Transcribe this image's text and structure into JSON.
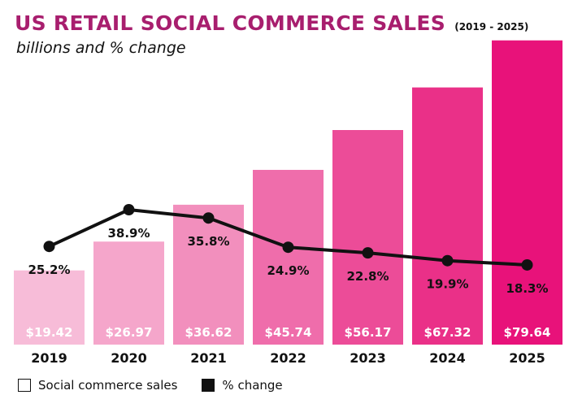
{
  "title": "US RETAIL SOCIAL COMMERCE SALES",
  "title_years": "(2019 - 2025)",
  "subtitle": "billions and % change",
  "legend": {
    "bars_label": "Social commerce sales",
    "line_label": "% change"
  },
  "colors": {
    "title": "#a81e6e",
    "line": "#111111",
    "bars": [
      "#f7bcd8",
      "#f5a6cb",
      "#f28fbd",
      "#ef6dab",
      "#ec4c98",
      "#ea3088",
      "#e8127a"
    ]
  },
  "chart_data": {
    "type": "bar",
    "categories": [
      "2019",
      "2020",
      "2021",
      "2022",
      "2023",
      "2024",
      "2025"
    ],
    "series": [
      {
        "values": [
          19.42,
          26.97,
          36.62,
          45.74,
          56.17,
          67.32,
          79.64
        ],
        "labels": [
          "$19.42",
          "$26.97",
          "$36.62",
          "$45.74",
          "$56.17",
          "$67.32",
          "$79.64"
        ]
      },
      {
        "type": "line",
        "values": [
          25.2,
          38.9,
          35.8,
          24.9,
          22.8,
          19.9,
          18.3
        ],
        "labels": [
          "25.2%",
          "38.9%",
          "35.8%",
          "24.9%",
          "22.8%",
          "19.9%",
          "18.3%"
        ]
      }
    ]
  }
}
